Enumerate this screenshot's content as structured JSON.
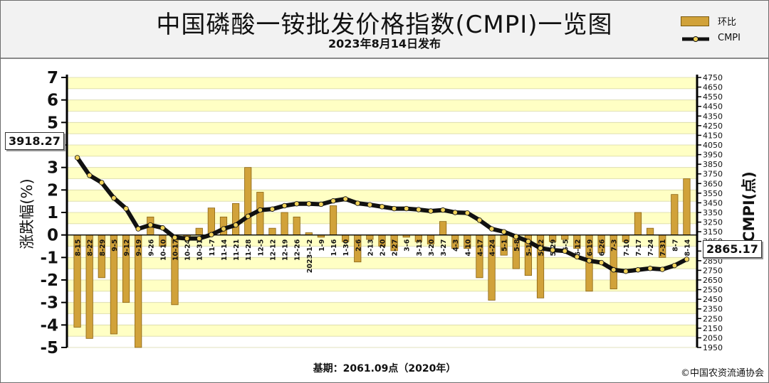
{
  "header": {
    "title": "中国磷酸一铵批发价格指数(CMPI)一览图",
    "subtitle": "2023年8月14日发布"
  },
  "legend": {
    "bar_label": "环比",
    "line_label": "CMPI"
  },
  "footer": {
    "base_note": "基期：2061.09点（2020年）",
    "copyright": "©中国农资流通协会"
  },
  "callouts": {
    "start_value": "3918.27",
    "end_value": "2865.17"
  },
  "colors": {
    "bar": "#d1a23a",
    "bar_dark": "#8a6414",
    "line": "#111111",
    "marker": "#f2d35a",
    "band_yellow": "#ffffc4",
    "band_white": "#ffffff"
  },
  "chart_data": {
    "type": "bar+line",
    "title": "中国磷酸一铵批发价格指数(CMPI)一览图",
    "subtitle": "2023年8月14日发布",
    "x_categories": [
      "8-15",
      "8-22",
      "8-29",
      "9-5",
      "9-12",
      "9-19",
      "9-26",
      "10-10",
      "10-17",
      "10-24",
      "10-31",
      "11-7",
      "11-14",
      "11-21",
      "11-28",
      "12-5",
      "12-12",
      "12-19",
      "12-26",
      "2023-1-2",
      "1-9",
      "1-16",
      "1-30",
      "2-6",
      "2-13",
      "2-20",
      "2-27",
      "3-6",
      "3-13",
      "3-20",
      "3-27",
      "4-3",
      "4-10",
      "4-17",
      "4-24",
      "5-1",
      "5-8",
      "5-15",
      "5-22",
      "5-29",
      "6-5",
      "6-12",
      "6-19",
      "6-26",
      "7-3",
      "7-10",
      "7-17",
      "7-24",
      "7-31",
      "8-7",
      "8-14"
    ],
    "ylabel_left": "涨跌幅(%)",
    "ylabel_right": "CMPI(点)",
    "ylim_left": [
      -5,
      7
    ],
    "yticks_left": [
      -5,
      -4,
      -3,
      -2,
      -1,
      0,
      1,
      2,
      3,
      4,
      5,
      6,
      7
    ],
    "ylim_right": [
      1950,
      4750
    ],
    "yticks_right": [
      1950,
      2050,
      2150,
      2250,
      2350,
      2450,
      2550,
      2650,
      2750,
      2850,
      2950,
      3050,
      3150,
      3250,
      3350,
      3450,
      3550,
      3650,
      3750,
      3850,
      3950,
      4050,
      4150,
      4250,
      4350,
      4450,
      4550,
      4650,
      4750
    ],
    "series": [
      {
        "name": "环比",
        "type": "bar",
        "values": [
          -4.1,
          -4.6,
          -1.9,
          -4.4,
          -3.0,
          -5.0,
          0.8,
          -0.5,
          -3.1,
          -0.2,
          0.3,
          1.2,
          0.8,
          1.4,
          3.0,
          1.9,
          0.3,
          1.0,
          0.8,
          0.1,
          -0.1,
          1.3,
          -0.3,
          -1.2,
          -0.2,
          -0.5,
          -0.7,
          -0.1,
          -0.3,
          -0.4,
          0.6,
          -0.6,
          -0.6,
          -1.9,
          -2.9,
          -0.9,
          -1.5,
          -1.8,
          -2.8,
          -0.3,
          -0.2,
          -0.6,
          -2.5,
          -0.8,
          -2.4,
          -0.3,
          1.0,
          0.3,
          -1.0,
          1.8,
          2.5
        ]
      },
      {
        "name": "CMPI",
        "type": "line",
        "values": [
          3918,
          3735,
          3660,
          3500,
          3390,
          3180,
          3220,
          3190,
          3090,
          3080,
          3080,
          3120,
          3180,
          3220,
          3310,
          3375,
          3385,
          3420,
          3440,
          3440,
          3435,
          3470,
          3490,
          3445,
          3430,
          3410,
          3390,
          3390,
          3380,
          3365,
          3375,
          3350,
          3345,
          3270,
          3180,
          3150,
          3100,
          3050,
          2980,
          2960,
          2950,
          2890,
          2850,
          2830,
          2755,
          2740,
          2755,
          2770,
          2760,
          2800,
          2865
        ]
      }
    ],
    "annotations": [
      "3918.27",
      "2865.17"
    ],
    "grid": true
  }
}
